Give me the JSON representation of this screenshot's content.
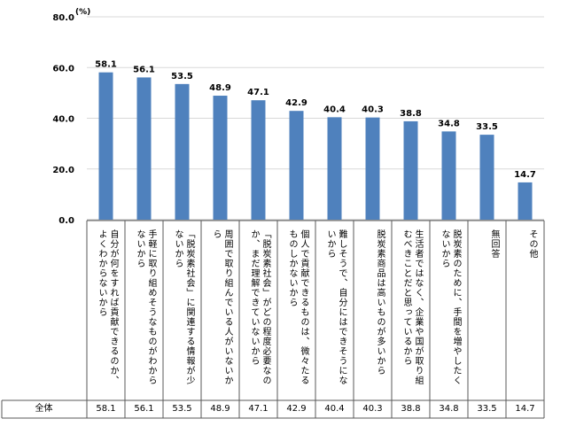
{
  "chart_data": {
    "type": "bar",
    "unit": "(%)",
    "y_ticks": [
      "80.0",
      "60.0",
      "40.0",
      "20.0",
      "0.0"
    ],
    "ylim": [
      0,
      80
    ],
    "grid": true,
    "bar_color": "#4f81bd",
    "categories": [
      "自分が何をすれば貢献できるのか、\nよくわからないから",
      "手軽に取り組めそうなものがわから\nないから",
      "「脱炭素社会」に関連する情報が少\nないから",
      "周囲で取り組んでいる人がいないか\nら",
      "「脱炭素社会」がどの程度必要なの\nか、まだ理解できていないから",
      "個人で貢献できるものは、微々たる\nものしかないから",
      "難しそうで、自分にはできそうにな\nいから",
      "脱炭素商品は高いものが多いから",
      "生活者ではなく、企業や国が取り組\nむべきことだと思っているから",
      "脱炭素のために、手間を増やしたく\nないから",
      "無回答",
      "その他"
    ],
    "values": [
      58.1,
      56.1,
      53.5,
      48.9,
      47.1,
      42.9,
      40.4,
      40.3,
      38.8,
      34.8,
      33.5,
      14.7
    ],
    "data_labels": [
      "58.1",
      "56.1",
      "53.5",
      "48.9",
      "47.1",
      "42.9",
      "40.4",
      "40.3",
      "38.8",
      "34.8",
      "33.5",
      "14.7"
    ],
    "table_row": {
      "label": "全体",
      "values": [
        "58.1",
        "56.1",
        "53.5",
        "48.9",
        "47.1",
        "42.9",
        "40.4",
        "40.3",
        "38.8",
        "34.8",
        "33.5",
        "14.7"
      ]
    }
  }
}
